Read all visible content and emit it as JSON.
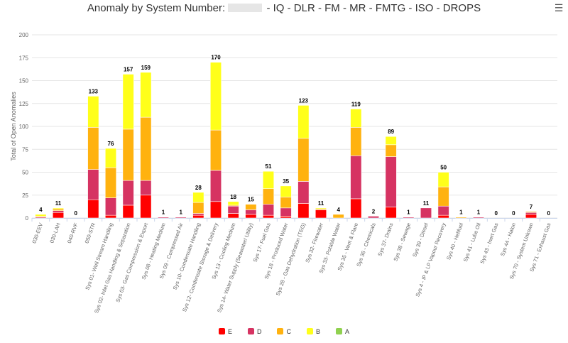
{
  "title": {
    "before": "Anomaly by System Number:",
    "after": "- IQ - DLR - FM - MR - FMTG - ISO - DROPS"
  },
  "menu_icon": "hamburger-menu-icon",
  "chart_data": {
    "type": "bar",
    "stacked": true,
    "title": "Anomaly by System Number: - IQ - DLR - FM - MR - FMTG - ISO - DROPS",
    "ylabel": "Total of Open Anomalies",
    "xlabel": "",
    "ylim": [
      0,
      200
    ],
    "yticks": [
      0,
      25,
      50,
      75,
      100,
      125,
      150,
      175,
      200
    ],
    "grid": true,
    "legend_position": "bottom-center",
    "categories": [
      "030-EEV",
      "030-LAH",
      "040-RVF",
      "050-STR",
      "Sys 01- Well Stream Handling",
      "Sys 02- Inlet Gas Handling & Separation",
      "Sys 03- Gas Compression & Export",
      "Sys 08 - Heating Medium",
      "Sys 09 - Compressed Air",
      "Sys 10- Condensate Handling",
      "Sys 12- Condensate Storage & Delivery",
      "Sys 13 - Cooling Medium",
      "Sys 14- Water Supply (Seawater/ Utility)",
      "Sys 17- Fuel Gas",
      "Sys 18 - Produced Water",
      "Sys 28 - Gas Dehydration (TEG)",
      "Sys 32- Firewater",
      "Sys 33- Potable Water",
      "Sys 35 - Vent & Flare",
      "Sys 36 - Chemicals",
      "Sys 37- Drains",
      "Sys 38 - Sewage",
      "Sys 39 - Diesel",
      "Sys 4 - IP & LP Vapour Recovery",
      "Sys 40 - Helifuel",
      "Sys 41 - Lube Oil",
      "Sys 43 - Inert Gas",
      "Sys 44 - Halon",
      "Sys 70 - System Unkown",
      "Sys 71 - Exhaust Gas"
    ],
    "totals": [
      4,
      11,
      0,
      133,
      76,
      157,
      159,
      1,
      1,
      28,
      170,
      18,
      15,
      51,
      35,
      123,
      11,
      4,
      119,
      2,
      89,
      1,
      11,
      50,
      1,
      1,
      0,
      0,
      7,
      0
    ],
    "series": [
      {
        "name": "E",
        "color": "#ff0000",
        "values": [
          0,
          6,
          0,
          20,
          3,
          14,
          25,
          0,
          0,
          3,
          18,
          5,
          4,
          3,
          2,
          16,
          9,
          0,
          21,
          0,
          12,
          0,
          0,
          3,
          0,
          0,
          0,
          0,
          4,
          0
        ]
      },
      {
        "name": "D",
        "color": "#d63362",
        "values": [
          1,
          2,
          0,
          33,
          19,
          27,
          16,
          1,
          1,
          2,
          34,
          8,
          5,
          12,
          9,
          24,
          0,
          0,
          47,
          2,
          55,
          1,
          11,
          10,
          0,
          1,
          0,
          0,
          2,
          0
        ]
      },
      {
        "name": "C",
        "color": "#ffb20f",
        "values": [
          1,
          2,
          0,
          46,
          33,
          56,
          69,
          0,
          0,
          12,
          44,
          1,
          6,
          17,
          12,
          47,
          1,
          4,
          31,
          0,
          13,
          0,
          0,
          21,
          1,
          0,
          0,
          0,
          1,
          0
        ]
      },
      {
        "name": "B",
        "color": "#ffff1a",
        "values": [
          2,
          1,
          0,
          34,
          21,
          60,
          49,
          0,
          0,
          11,
          74,
          4,
          0,
          19,
          12,
          36,
          1,
          0,
          20,
          0,
          9,
          0,
          0,
          16,
          0,
          0,
          0,
          0,
          0,
          0
        ]
      },
      {
        "name": "A",
        "color": "#90d14f",
        "values": [
          0,
          0,
          0,
          0,
          0,
          0,
          0,
          0,
          0,
          0,
          0,
          0,
          0,
          0,
          0,
          0,
          0,
          0,
          0,
          0,
          0,
          0,
          0,
          0,
          0,
          0,
          0,
          0,
          0,
          0
        ]
      }
    ]
  }
}
